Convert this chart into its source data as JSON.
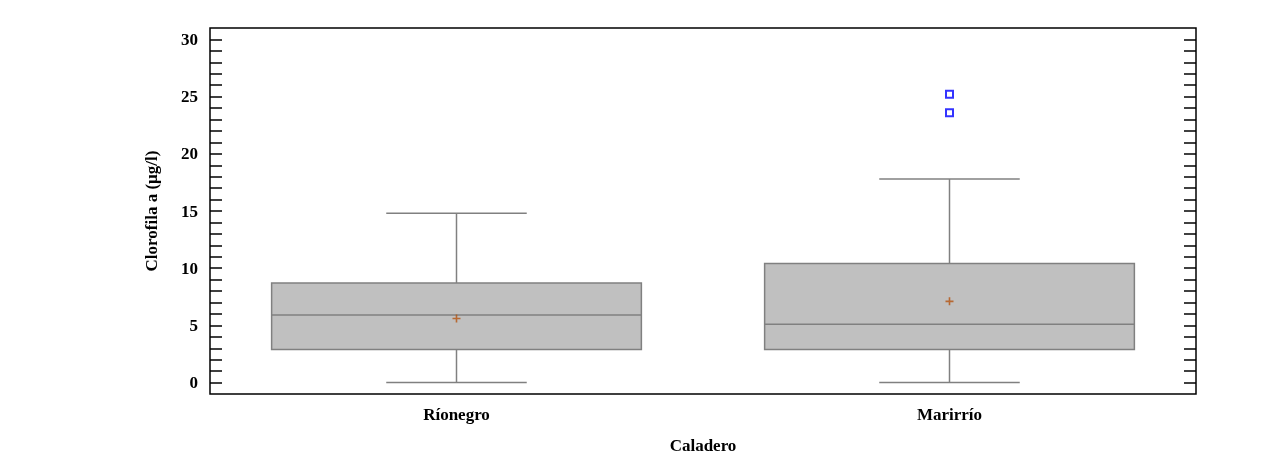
{
  "chart_data": {
    "type": "box",
    "xlabel": "Caladero",
    "ylabel": "Clorofila a (µg/l)",
    "categories": [
      "Ríonegro",
      "Marirrío"
    ],
    "series": [
      {
        "color": "#c0c0c0",
        "boxes": [
          {
            "low": 0,
            "q1": 2.9,
            "median": 5.9,
            "q3": 8.7,
            "high": 14.8,
            "mean": 5.6
          },
          {
            "low": 0,
            "q1": 2.9,
            "median": 5.1,
            "q3": 10.4,
            "high": 17.8,
            "mean": 7.1,
            "outliers": [
              23.6,
              25.2
            ]
          }
        ]
      }
    ],
    "ylim": [
      -1,
      31
    ],
    "yticks": [
      0,
      5,
      10,
      15,
      20,
      25,
      30
    ],
    "grid": false
  }
}
